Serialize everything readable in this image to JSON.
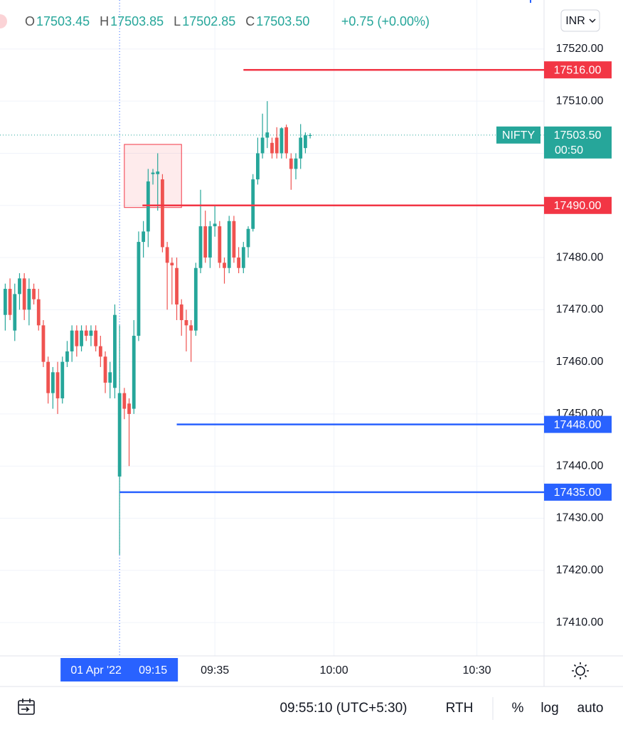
{
  "header": {
    "ohlc": [
      {
        "key": "O",
        "value": "17503.45"
      },
      {
        "key": "H",
        "value": "17503.85"
      },
      {
        "key": "L",
        "value": "17502.85"
      },
      {
        "key": "C",
        "value": "17503.50"
      }
    ],
    "change": "+0.75 (+0.00%)",
    "currency": "INR"
  },
  "chart_data": {
    "type": "candlestick",
    "up_color": "#26a69a",
    "down_color": "#ef5350",
    "x": [
      -24,
      -23,
      -22,
      -21,
      -20,
      -19,
      -18,
      -17,
      -16,
      -15,
      -14,
      -13,
      -12,
      -11,
      -10,
      -9,
      -8,
      -7,
      -6,
      -5,
      -4,
      -3,
      -2,
      -1,
      0,
      1,
      2,
      3,
      4,
      5,
      6,
      7,
      8,
      9,
      10,
      11,
      12,
      13,
      14,
      15,
      16,
      17,
      18,
      19,
      20,
      21,
      22,
      23,
      24,
      25,
      26,
      27,
      28,
      29,
      30,
      31,
      32,
      33,
      34,
      35,
      36,
      37,
      38,
      39,
      40
    ],
    "open": [
      17469,
      17474,
      17466,
      17473,
      17476,
      17470,
      17474,
      17472,
      17467,
      17460,
      17454,
      17458,
      17453,
      17460,
      17462,
      17466,
      17463,
      17466,
      17465,
      17466,
      17463,
      17461,
      17456,
      17455,
      17438,
      17454,
      17452,
      17451,
      17465,
      17483,
      17485,
      17496,
      17496,
      17495,
      17482,
      17479,
      17478,
      17471,
      17468,
      17467,
      17466,
      17478,
      17486,
      17480,
      17486,
      17486,
      17479,
      17478,
      17487,
      17480,
      17478,
      17482,
      17485.5,
      17495,
      17500,
      17503,
      17502,
      17503,
      17500,
      17505,
      17499,
      17497,
      17499,
      17501,
      17503.45
    ],
    "high": [
      17475,
      17476,
      17475,
      17477,
      17477,
      17476,
      17475,
      17474,
      17468,
      17461,
      17459,
      17460,
      17461,
      17464,
      17467,
      17467,
      17467,
      17467,
      17467,
      17467,
      17465,
      17462,
      17460,
      17471,
      17467,
      17455,
      17453,
      17468,
      17485,
      17487,
      17497,
      17497,
      17500,
      17496,
      17483,
      17480,
      17480,
      17472,
      17470,
      17468,
      17479,
      17493,
      17489,
      17487,
      17490,
      17487,
      17480,
      17488,
      17488,
      17482,
      17483,
      17486,
      17496,
      17503,
      17507.6,
      17510,
      17503,
      17505,
      17505,
      17505.5,
      17500,
      17500,
      17505.6,
      17504,
      17503.85
    ],
    "low": [
      17466,
      17468,
      17464,
      17470,
      17468,
      17467,
      17471,
      17466,
      17459,
      17452,
      17451,
      17450,
      17452,
      17459,
      17460,
      17461,
      17462,
      17464,
      17463,
      17462,
      17459,
      17454,
      17453,
      17453,
      17423,
      17449,
      17440,
      17450,
      17464,
      17480,
      17482,
      17494,
      17489,
      17481,
      17470,
      17471,
      17468,
      17465,
      17462,
      17460,
      17465,
      17477,
      17479,
      17478,
      17484,
      17478,
      17475,
      17477,
      17479,
      17477,
      17477,
      17480,
      17485,
      17494,
      17499,
      17501,
      17499,
      17499,
      17499,
      17499,
      17493,
      17495,
      17497,
      17500,
      17502.85
    ],
    "close": [
      17474,
      17469,
      17473,
      17476,
      17470,
      17474,
      17472,
      17467,
      17460,
      17454,
      17458,
      17453,
      17460,
      17462,
      17466,
      17463,
      17466,
      17465,
      17466,
      17463,
      17461,
      17456,
      17458,
      17469,
      17454,
      17451,
      17450,
      17465,
      17483,
      17485,
      17494.6,
      17496.3,
      17496.5,
      17482,
      17479,
      17478.5,
      17471,
      17468,
      17467,
      17466,
      17478,
      17486,
      17480,
      17486,
      17486.5,
      17479,
      17478,
      17487,
      17480,
      17478,
      17482,
      17485.5,
      17495,
      17500,
      17503,
      17504,
      17500,
      17500,
      17504.8,
      17500,
      17497,
      17499,
      17503,
      17503.45,
      17503.5
    ],
    "xlim": [
      -25.1,
      89.1
    ],
    "ylim": [
      17403.6,
      17529.4
    ],
    "xticks": [
      {
        "value": 20,
        "label": "09:35"
      },
      {
        "value": 45,
        "label": "10:00"
      },
      {
        "value": 75,
        "label": "10:30"
      }
    ],
    "yticks": [
      {
        "value": 17410,
        "label": "17410.00"
      },
      {
        "value": 17420,
        "label": "17420.00"
      },
      {
        "value": 17430,
        "label": "17430.00"
      },
      {
        "value": 17440,
        "label": "17440.00"
      },
      {
        "value": 17450,
        "label": "17450.00"
      },
      {
        "value": 17460,
        "label": "17460.00"
      },
      {
        "value": 17470,
        "label": "17470.00"
      },
      {
        "value": 17480,
        "label": "17480.00"
      },
      {
        "value": 17490,
        "label": "17490.00"
      },
      {
        "value": 17500,
        "label": "17500.00"
      },
      {
        "value": 17510,
        "label": "17510.00"
      },
      {
        "value": 17520,
        "label": "17520.00"
      }
    ],
    "grid": true,
    "hlines": [
      {
        "value": 17516,
        "label": "17516.00",
        "from": 26,
        "color": "#f23645"
      },
      {
        "value": 17490,
        "label": "17490.00",
        "from": 4.8,
        "color": "#f23645"
      },
      {
        "value": 17448,
        "label": "17448.00",
        "from": 12,
        "color": "#2962ff"
      },
      {
        "value": 17435,
        "label": "17435.00",
        "from": 0,
        "color": "#2962ff"
      }
    ],
    "rectangle": {
      "x": [
        1,
        13
      ],
      "y": [
        17489.6,
        17501.7
      ]
    },
    "last": {
      "value": 17503.5,
      "label": "17503.50",
      "countdown": "00:50",
      "symbol": "NIFTY"
    },
    "crosshair": {
      "x": 0,
      "date": "01 Apr '22",
      "time": "09:15"
    }
  },
  "footer": {
    "time": "09:55:10 (UTC+5:30)",
    "session": "RTH",
    "percent": "%",
    "log": "log",
    "auto": "auto"
  }
}
